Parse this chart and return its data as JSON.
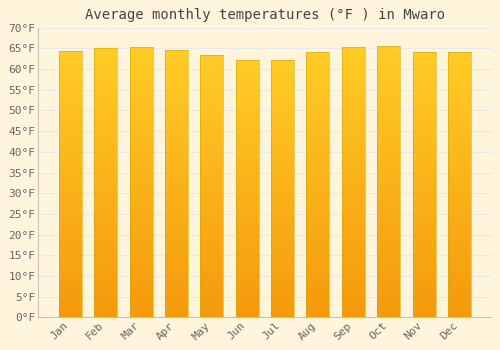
{
  "title": "Average monthly temperatures (°F ) in Mwaro",
  "months": [
    "Jan",
    "Feb",
    "Mar",
    "Apr",
    "May",
    "Jun",
    "Jul",
    "Aug",
    "Sep",
    "Oct",
    "Nov",
    "Dec"
  ],
  "values": [
    64.4,
    65.0,
    65.3,
    64.6,
    63.5,
    62.2,
    62.2,
    64.2,
    65.3,
    65.5,
    64.2,
    64.2
  ],
  "bar_color_center": "#FFB800",
  "bar_color_edge": "#E8950A",
  "background_color": "#FFF5DC",
  "plot_bg_color": "#FFF5DC",
  "grid_color": "#E8E8E8",
  "text_color": "#666666",
  "title_color": "#444444",
  "ylim": [
    0,
    70
  ],
  "yticks": [
    0,
    5,
    10,
    15,
    20,
    25,
    30,
    35,
    40,
    45,
    50,
    55,
    60,
    65,
    70
  ],
  "ytick_labels": [
    "0°F",
    "5°F",
    "10°F",
    "15°F",
    "20°F",
    "25°F",
    "30°F",
    "35°F",
    "40°F",
    "45°F",
    "50°F",
    "55°F",
    "60°F",
    "65°F",
    "70°F"
  ],
  "bar_width": 0.65,
  "title_fontsize": 10,
  "tick_fontsize": 8
}
